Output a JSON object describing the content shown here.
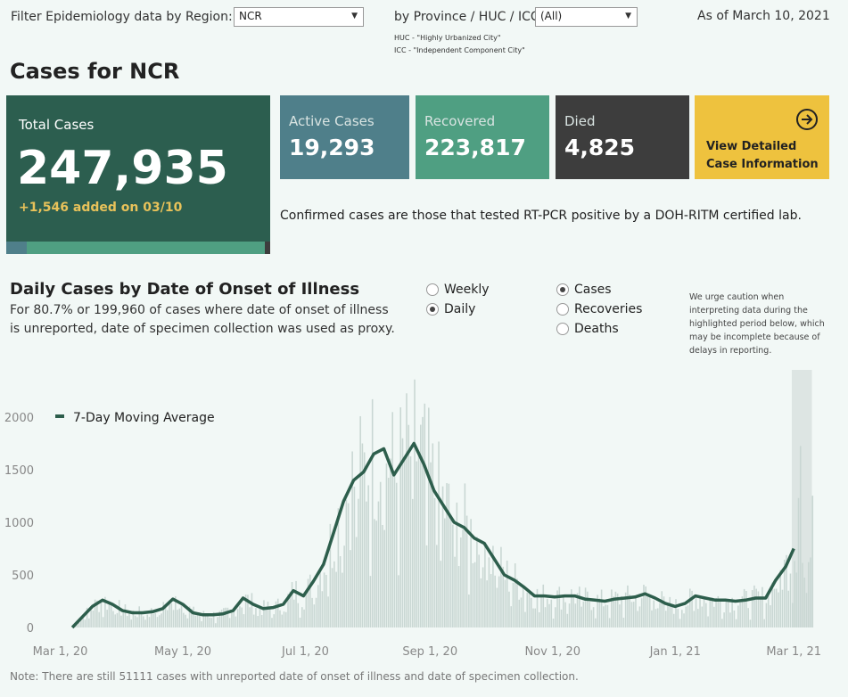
{
  "filters": {
    "region_label": "Filter Epidemiology data by Region:",
    "region_value": "NCR",
    "province_label": "by Province / HUC / ICC:",
    "province_value": "(All)",
    "huc_note": "HUC - \"Highly Urbanized City\"",
    "icc_note": "ICC - \"Independent Component City\"",
    "as_of": "As of March 10, 2021"
  },
  "page_title": "Cases for NCR",
  "cards": {
    "total_label": "Total Cases",
    "total_value": "247,935",
    "total_added": "+1,546 added on 03/10",
    "active_label": "Active Cases",
    "active_value": "19,293",
    "recovered_label": "Recovered",
    "recovered_value": "223,817",
    "died_label": "Died",
    "died_value": "4,825",
    "detail_line1": "View Detailed",
    "detail_line2": "Case Information"
  },
  "confirmed_note": "Confirmed cases are those that tested RT-PCR positive by a DOH-RITM certified lab.",
  "chart_section": {
    "title": "Daily Cases by Date of Onset of Illness",
    "subtitle": "For 80.7% or 199,960 of cases where date of onset of illness is unreported, date of specimen collection was used as proxy.",
    "period_options": [
      "Weekly",
      "Daily"
    ],
    "period_selected": "Daily",
    "measure_options": [
      "Cases",
      "Recoveries",
      "Deaths"
    ],
    "measure_selected": "Cases",
    "caution": "We urge caution when interpreting data during the highlighted period below, which may be incomplete because of delays in reporting.",
    "footnote": "Note: There are still 51111 cases with unreported date of onset of illness and date of specimen collection."
  },
  "colors": {
    "total_card": "#2c5e4f",
    "active_card": "#4f7f8a",
    "recovered_card": "#4f9f82",
    "died_card": "#3d3d3d",
    "detail_card": "#eec23e",
    "bars": "#c9d7d3",
    "moving_average": "#2d5e4c"
  },
  "chart_data": {
    "type": "bar",
    "x_axis": "date",
    "xlim": [
      "2020-02-20",
      "2021-03-12"
    ],
    "ylim": [
      0,
      2300
    ],
    "y_ticks": [
      0,
      500,
      1000,
      1500,
      2000
    ],
    "x_ticks": [
      "Mar 1, 20",
      "May 1, 20",
      "Jul 1, 20",
      "Sep 1, 20",
      "Nov 1, 20",
      "Jan 1, 21",
      "Mar 1, 21"
    ],
    "legend": "7-Day Moving Average",
    "legend_position": "top-left",
    "highlight_period": [
      "2021-02-28",
      "2021-03-10"
    ],
    "series": [
      {
        "name": "7-Day Moving Average",
        "type": "line",
        "points": [
          [
            "2020-03-07",
            0
          ],
          [
            "2020-03-12",
            100
          ],
          [
            "2020-03-17",
            200
          ],
          [
            "2020-03-22",
            260
          ],
          [
            "2020-03-27",
            220
          ],
          [
            "2020-04-01",
            160
          ],
          [
            "2020-04-06",
            140
          ],
          [
            "2020-04-11",
            140
          ],
          [
            "2020-04-16",
            150
          ],
          [
            "2020-04-21",
            180
          ],
          [
            "2020-04-26",
            270
          ],
          [
            "2020-05-01",
            220
          ],
          [
            "2020-05-06",
            140
          ],
          [
            "2020-05-11",
            120
          ],
          [
            "2020-05-16",
            120
          ],
          [
            "2020-05-21",
            130
          ],
          [
            "2020-05-26",
            160
          ],
          [
            "2020-05-31",
            280
          ],
          [
            "2020-06-05",
            220
          ],
          [
            "2020-06-10",
            180
          ],
          [
            "2020-06-15",
            190
          ],
          [
            "2020-06-20",
            220
          ],
          [
            "2020-06-25",
            350
          ],
          [
            "2020-06-30",
            300
          ],
          [
            "2020-07-05",
            440
          ],
          [
            "2020-07-10",
            600
          ],
          [
            "2020-07-15",
            900
          ],
          [
            "2020-07-20",
            1200
          ],
          [
            "2020-07-25",
            1400
          ],
          [
            "2020-07-30",
            1480
          ],
          [
            "2020-08-04",
            1650
          ],
          [
            "2020-08-09",
            1700
          ],
          [
            "2020-08-14",
            1450
          ],
          [
            "2020-08-19",
            1600
          ],
          [
            "2020-08-24",
            1750
          ],
          [
            "2020-08-29",
            1550
          ],
          [
            "2020-09-03",
            1300
          ],
          [
            "2020-09-08",
            1150
          ],
          [
            "2020-09-13",
            1000
          ],
          [
            "2020-09-18",
            950
          ],
          [
            "2020-09-23",
            850
          ],
          [
            "2020-09-28",
            800
          ],
          [
            "2020-10-03",
            650
          ],
          [
            "2020-10-08",
            500
          ],
          [
            "2020-10-13",
            450
          ],
          [
            "2020-10-18",
            380
          ],
          [
            "2020-10-23",
            300
          ],
          [
            "2020-10-28",
            300
          ],
          [
            "2020-11-02",
            290
          ],
          [
            "2020-11-07",
            300
          ],
          [
            "2020-11-12",
            300
          ],
          [
            "2020-11-17",
            270
          ],
          [
            "2020-11-22",
            260
          ],
          [
            "2020-11-27",
            250
          ],
          [
            "2020-12-02",
            270
          ],
          [
            "2020-12-07",
            280
          ],
          [
            "2020-12-12",
            290
          ],
          [
            "2020-12-17",
            320
          ],
          [
            "2020-12-22",
            280
          ],
          [
            "2020-12-27",
            230
          ],
          [
            "2021-01-01",
            200
          ],
          [
            "2021-01-06",
            230
          ],
          [
            "2021-01-11",
            300
          ],
          [
            "2021-01-16",
            280
          ],
          [
            "2021-01-21",
            260
          ],
          [
            "2021-01-26",
            260
          ],
          [
            "2021-01-31",
            250
          ],
          [
            "2021-02-05",
            260
          ],
          [
            "2021-02-10",
            280
          ],
          [
            "2021-02-15",
            280
          ],
          [
            "2021-02-20",
            450
          ],
          [
            "2021-02-25",
            580
          ],
          [
            "2021-03-01",
            750
          ]
        ]
      }
    ]
  }
}
